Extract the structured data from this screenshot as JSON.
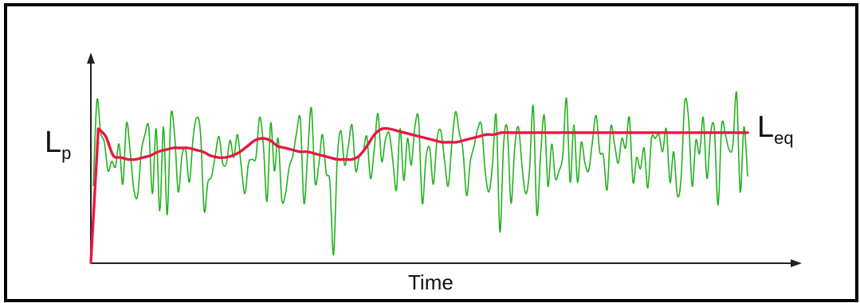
{
  "chart_data": {
    "type": "line",
    "xlabel": "Time",
    "ylabel": {
      "main": "L",
      "sub": "p"
    },
    "series": [
      {
        "name": "Lp",
        "color": "#22b21e",
        "y": [
          40,
          85,
          68,
          63,
          48,
          53,
          50,
          62,
          41,
          73,
          58,
          38,
          35,
          58,
          67,
          71,
          36,
          70,
          27,
          71,
          25,
          77,
          67,
          37,
          56,
          59,
          42,
          65,
          76,
          68,
          27,
          42,
          45,
          56,
          66,
          52,
          52,
          64,
          55,
          67,
          51,
          36,
          52,
          54,
          55,
          76,
          62,
          32,
          73,
          48,
          65,
          33,
          36,
          50,
          56,
          68,
          75,
          31,
          57,
          81,
          42,
          51,
          67,
          47,
          42,
          4,
          54,
          69,
          51,
          61,
          72,
          48,
          56,
          58,
          66,
          44,
          59,
          78,
          53,
          64,
          68,
          54,
          38,
          70,
          43,
          65,
          51,
          71,
          75,
          31,
          55,
          60,
          41,
          65,
          69,
          54,
          40,
          62,
          79,
          68,
          59,
          35,
          53,
          61,
          70,
          72,
          48,
          37,
          51,
          77,
          16,
          62,
          70,
          31,
          60,
          71,
          50,
          36,
          48,
          82,
          25,
          56,
          77,
          40,
          62,
          44,
          48,
          56,
          86,
          42,
          72,
          42,
          63,
          52,
          48,
          63,
          77,
          58,
          56,
          38,
          71,
          62,
          52,
          65,
          60,
          76,
          42,
          55,
          49,
          60,
          39,
          65,
          65,
          67,
          58,
          70,
          42,
          58,
          35,
          44,
          84,
          76,
          40,
          64,
          57,
          76,
          44,
          68,
          70,
          30,
          72,
          67,
          59,
          61,
          89,
          37,
          71,
          45
        ]
      },
      {
        "name": "Leq",
        "color": "#e8183f",
        "y": [
          0,
          70,
          66,
          56,
          55,
          54,
          54,
          55,
          56,
          58,
          59,
          60,
          60,
          60,
          59,
          58,
          56,
          55,
          55,
          56,
          58,
          61,
          64,
          65,
          64,
          61,
          60,
          59,
          58,
          58,
          57,
          56,
          55,
          54,
          54,
          54,
          56,
          61,
          67,
          70,
          70,
          69,
          68,
          67,
          66,
          65,
          64,
          63,
          63,
          63,
          64,
          65,
          66,
          67,
          67,
          68,
          68,
          68,
          68,
          68,
          68,
          68,
          68,
          68,
          68,
          68,
          68,
          68,
          68,
          68,
          68,
          68,
          68,
          68,
          68,
          68,
          68,
          68,
          68,
          68,
          68,
          68,
          68,
          68,
          68,
          68,
          68,
          68,
          68
        ]
      }
    ],
    "annotation": {
      "main": "L",
      "sub": "eq"
    },
    "axes": {
      "arrows": true,
      "ticks": false,
      "grid": false,
      "x_ticklabels": false,
      "y_ticklabels": false
    }
  }
}
